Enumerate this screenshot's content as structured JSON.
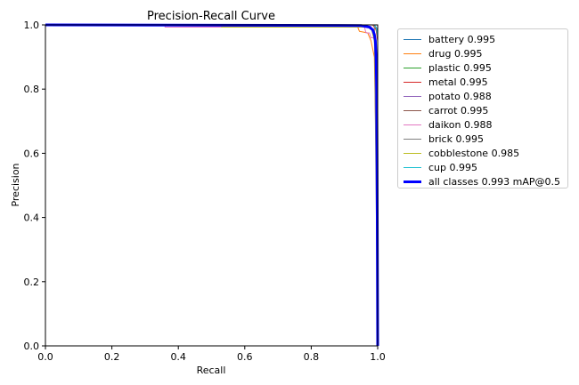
{
  "chart_data": {
    "type": "line",
    "title": "Precision-Recall Curve",
    "xlabel": "Recall",
    "ylabel": "Precision",
    "xlim": [
      0,
      1
    ],
    "ylim": [
      0,
      1
    ],
    "x_ticks": [
      "0.0",
      "0.2",
      "0.4",
      "0.6",
      "0.8",
      "1.0"
    ],
    "y_ticks": [
      "0.0",
      "0.2",
      "0.4",
      "0.6",
      "0.8",
      "1.0"
    ],
    "grid": false,
    "legend_position": "outside-right",
    "series": [
      {
        "name": "battery 0.995",
        "color": "#1f77b4",
        "bold": false,
        "points": [
          [
            0,
            1
          ],
          [
            0.99,
            1
          ],
          [
            0.997,
            0.99
          ],
          [
            1.0,
            0.97
          ],
          [
            1.0,
            0
          ]
        ]
      },
      {
        "name": "drug 0.995",
        "color": "#ff7f0e",
        "bold": false,
        "points": [
          [
            0,
            1
          ],
          [
            0.94,
            0.993
          ],
          [
            0.945,
            0.98
          ],
          [
            0.97,
            0.975
          ],
          [
            0.98,
            0.95
          ],
          [
            0.99,
            0.9
          ],
          [
            0.995,
            0.6
          ],
          [
            0.998,
            0.3
          ],
          [
            1.0,
            0
          ]
        ]
      },
      {
        "name": "plastic 0.995",
        "color": "#2ca02c",
        "bold": false,
        "points": [
          [
            0,
            1
          ],
          [
            1.0,
            1
          ],
          [
            1.0,
            0
          ]
        ]
      },
      {
        "name": "metal 0.995",
        "color": "#d62728",
        "bold": false,
        "points": [
          [
            0,
            1
          ],
          [
            0.985,
            1
          ],
          [
            0.995,
            0.985
          ],
          [
            1.0,
            0.95
          ],
          [
            1.0,
            0
          ]
        ]
      },
      {
        "name": "potato 0.988",
        "color": "#9467bd",
        "bold": false,
        "points": [
          [
            0,
            1
          ],
          [
            0.98,
            0.995
          ],
          [
            0.985,
            0.98
          ],
          [
            0.99,
            0.95
          ],
          [
            0.995,
            0.9
          ],
          [
            0.998,
            0.75
          ],
          [
            1.0,
            0
          ]
        ]
      },
      {
        "name": "carrot 0.995",
        "color": "#8c564b",
        "bold": false,
        "points": [
          [
            0,
            1
          ],
          [
            0.99,
            1
          ],
          [
            0.995,
            0.99
          ],
          [
            1.0,
            0.97
          ],
          [
            1.0,
            0
          ]
        ]
      },
      {
        "name": "daikon 0.988",
        "color": "#e377c2",
        "bold": false,
        "points": [
          [
            0,
            1
          ],
          [
            0.36,
            1
          ],
          [
            0.36,
            0.993
          ],
          [
            0.96,
            0.993
          ],
          [
            0.965,
            0.975
          ],
          [
            0.975,
            0.975
          ],
          [
            0.98,
            0.96
          ],
          [
            0.99,
            0.96
          ],
          [
            0.995,
            0.9
          ],
          [
            1.0,
            0
          ]
        ]
      },
      {
        "name": "brick 0.995",
        "color": "#7f7f7f",
        "bold": false,
        "points": [
          [
            0,
            1
          ],
          [
            0.98,
            1
          ],
          [
            0.99,
            1
          ],
          [
            1.0,
            0
          ]
        ]
      },
      {
        "name": "cobblestone 0.985",
        "color": "#bcbd22",
        "bold": false,
        "points": [
          [
            0,
            1
          ],
          [
            0.53,
            1
          ],
          [
            0.53,
            0.993
          ],
          [
            0.98,
            0.993
          ],
          [
            0.99,
            0.95
          ],
          [
            0.995,
            0.8
          ],
          [
            0.997,
            0.5
          ],
          [
            0.999,
            0.3
          ],
          [
            1.0,
            0
          ]
        ]
      },
      {
        "name": "cup 0.995",
        "color": "#17becf",
        "bold": false,
        "points": [
          [
            0,
            1
          ],
          [
            0.99,
            1
          ],
          [
            0.996,
            0.99
          ],
          [
            1.0,
            0.96
          ],
          [
            1.0,
            0
          ]
        ]
      },
      {
        "name": "all classes 0.993 mAP@0.5",
        "color": "#0000ff",
        "bold": true,
        "points": [
          [
            0,
            1
          ],
          [
            0.95,
            0.998
          ],
          [
            0.975,
            0.993
          ],
          [
            0.985,
            0.985
          ],
          [
            0.99,
            0.97
          ],
          [
            0.993,
            0.95
          ],
          [
            0.995,
            0.9
          ],
          [
            0.997,
            0.8
          ],
          [
            0.998,
            0.6
          ],
          [
            0.999,
            0.3
          ],
          [
            1.0,
            0
          ]
        ]
      }
    ]
  }
}
